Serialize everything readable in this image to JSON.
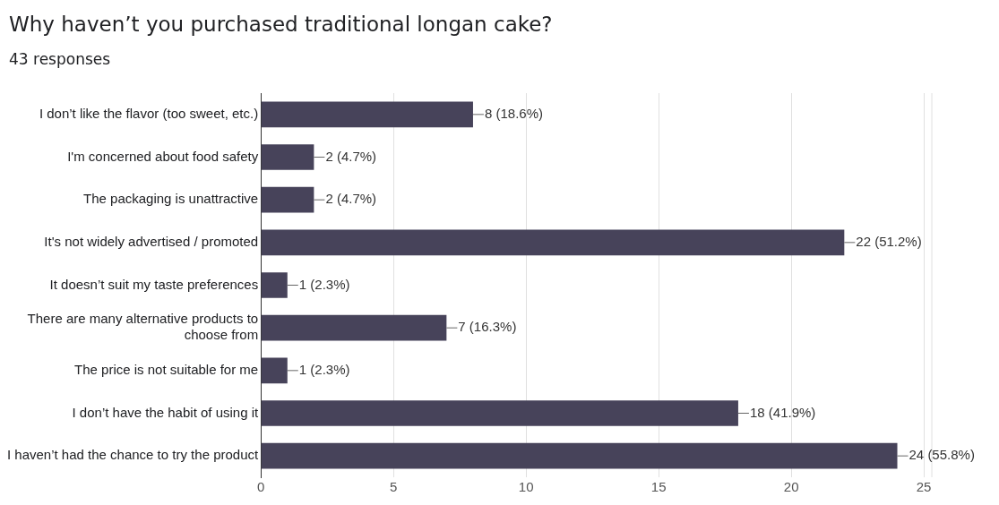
{
  "chart_data": {
    "type": "bar",
    "title": "Why haven’t you purchased traditional longan cake?",
    "subtitle": "43 responses",
    "orientation": "horizontal",
    "categories": [
      "I don’t like the flavor (too sweet, etc.)",
      "I'm concerned about food safety",
      "The packaging is unattractive",
      "It's not widely advertised / promoted",
      "It doesn’t suit my taste preferences",
      "There are many alternative products to choose from",
      "The price is not suitable for me",
      "I don’t have the habit of using it",
      "I haven’t had the chance to try the product"
    ],
    "values": [
      8,
      2,
      2,
      22,
      1,
      7,
      1,
      18,
      24
    ],
    "value_labels": [
      "8 (18.6%)",
      "2 (4.7%)",
      "2 (4.7%)",
      "22 (51.2%)",
      "1 (2.3%)",
      "7 (16.3%)",
      "1 (2.3%)",
      "18 (41.9%)",
      "24 (55.8%)"
    ],
    "color": "#47435a",
    "xlim": [
      0,
      25.3
    ],
    "xticks": [
      0,
      5,
      10,
      15,
      20,
      25
    ],
    "grid": "x",
    "legend": false
  }
}
